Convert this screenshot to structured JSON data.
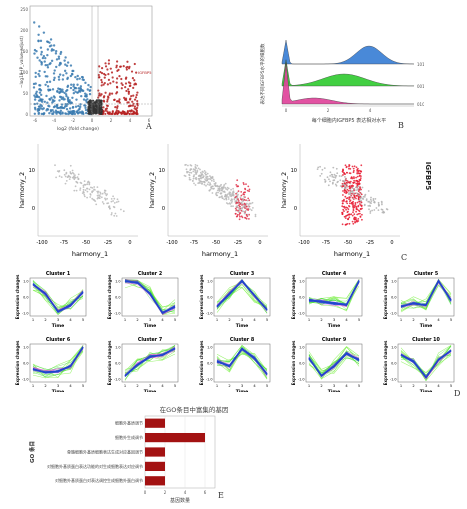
{
  "panels": {
    "A": {
      "letter": "A",
      "xlabel": "log2 (fold change)",
      "ylabel": "−log10 (P_value_adjust)",
      "gene_label": "IGFBP5",
      "xticks": [
        "-6",
        "-4",
        "-2",
        "0",
        "2",
        "4",
        "6"
      ],
      "yticks": [
        "0",
        "50",
        "100",
        "150",
        "200",
        "250"
      ],
      "colors": {
        "down": "#3b7bb0",
        "up": "#b52020",
        "ns": "#333333"
      }
    },
    "B": {
      "letter": "B",
      "xlabel": "每个细胞内IGFBP5 表达相对水平",
      "ylabel": "表达不同IGFBP5水平的细胞数",
      "xticks": [
        "0",
        "2",
        "4"
      ],
      "row_labels": [
        "101",
        "001",
        "010"
      ],
      "colors": [
        "#3a7fd5",
        "#33cc33",
        "#e0449b"
      ]
    },
    "C": {
      "letter": "C",
      "gene_label": "IGFBP5",
      "xlabel": "harmony_1",
      "ylabel": "harmony_2",
      "xticks": [
        "-100",
        "-75",
        "-50",
        "-25",
        "0"
      ],
      "yticks": [
        "0",
        "10"
      ]
    },
    "D": {
      "letter": "D",
      "ylabel": "Expression changes",
      "xlabel": "Time",
      "clusters": [
        "Cluster 1",
        "Cluster 2",
        "Cluster 3",
        "Cluster 4",
        "Cluster 5",
        "Cluster 6",
        "Cluster 7",
        "Cluster 8",
        "Cluster 9",
        "Cluster 10"
      ],
      "xticks": [
        "1",
        "2",
        "3",
        "4",
        "5"
      ],
      "yticks": [
        "1.0",
        "0.5",
        "0.0",
        "-0.5",
        "-1.0"
      ]
    },
    "E": {
      "letter": "E",
      "title": "在GO条目中富集的基因",
      "xlabel": "基因数量",
      "ylabel": "GO 条目",
      "xticks": [
        "0",
        "2",
        "4",
        "6"
      ],
      "bar_color": "#a31212"
    }
  },
  "chart_data": [
    {
      "type": "bar",
      "orientation": "horizontal",
      "title": "在GO条目中富集的基因",
      "xlabel": "基因数量",
      "ylabel": "GO 条目",
      "categories": [
        "细胞外基质调节",
        "细胞外生成调节",
        "骨骼细胞外基质细胞表达生成对应基因调节",
        "对细胞外基质蛋白表达功能的对生成细胞表达对应调节",
        "对细胞外基质蛋白对表达调控生成细胞外蛋白调节"
      ],
      "values": [
        2,
        6,
        2,
        2,
        2
      ],
      "xlim": [
        0,
        7
      ]
    }
  ]
}
